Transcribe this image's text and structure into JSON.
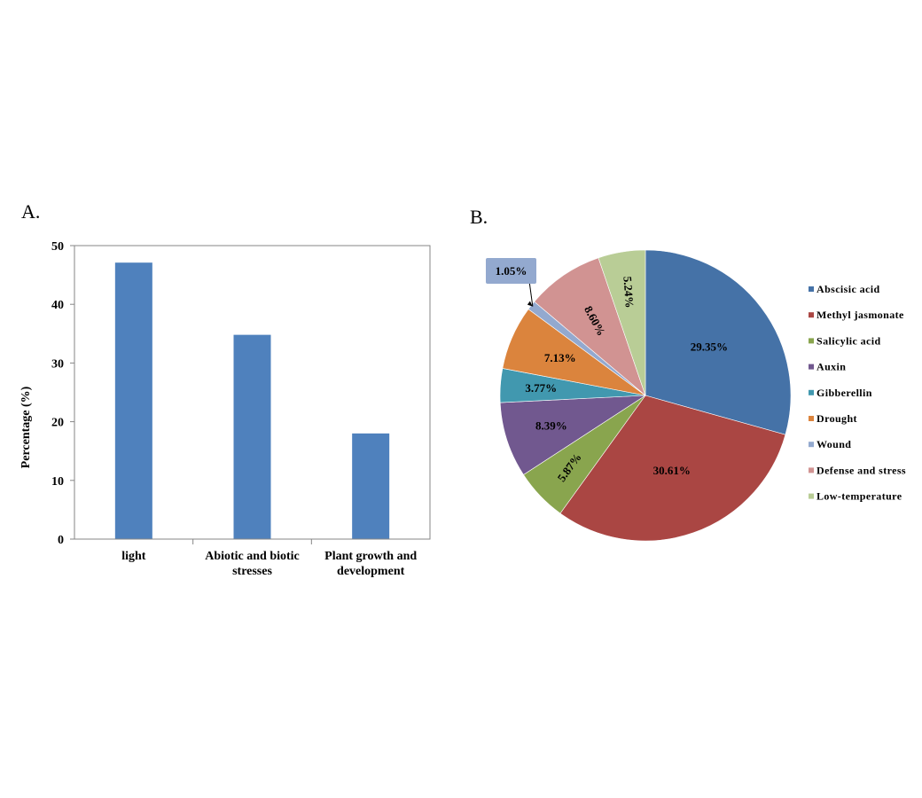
{
  "panels": {
    "a_label": "A.",
    "b_label": "B."
  },
  "chart_data": [
    {
      "type": "bar",
      "categories": [
        [
          "light"
        ],
        [
          "Abiotic and biotic",
          "stresses"
        ],
        [
          "Plant growth and",
          "development"
        ]
      ],
      "values": [
        47.1,
        34.8,
        18.0
      ],
      "ylabel": "Percentage (%)",
      "ylim": [
        0,
        50
      ],
      "yticks": [
        0,
        10,
        20,
        30,
        40,
        50
      ],
      "bar_color": "#4f81bd",
      "grid": false
    },
    {
      "type": "pie",
      "legend_position": "right",
      "slices": [
        {
          "name": "Abscisic acid",
          "value": 29.35,
          "label": "29.35%",
          "color": "#4572a7"
        },
        {
          "name": "Methyl jasmonate",
          "value": 30.61,
          "label": "30.61%",
          "color": "#aa4643"
        },
        {
          "name": "Salicylic acid",
          "value": 5.87,
          "label": "5.87%",
          "color": "#89a54e"
        },
        {
          "name": "Auxin",
          "value": 8.39,
          "label": "8.39%",
          "color": "#71588f"
        },
        {
          "name": "Gibberellin",
          "value": 3.77,
          "label": "3.77%",
          "color": "#4198af"
        },
        {
          "name": "Drought",
          "value": 7.13,
          "label": "7.13%",
          "color": "#db843d"
        },
        {
          "name": "Wound",
          "value": 1.05,
          "label": "1.05%",
          "color": "#93a9cf"
        },
        {
          "name": "Defense and stress",
          "value": 8.6,
          "label": "8.60%",
          "color": "#d19392"
        },
        {
          "name": "Low-temperature",
          "value": 5.24,
          "label": "5.24%",
          "color": "#b9cd96"
        }
      ]
    }
  ]
}
